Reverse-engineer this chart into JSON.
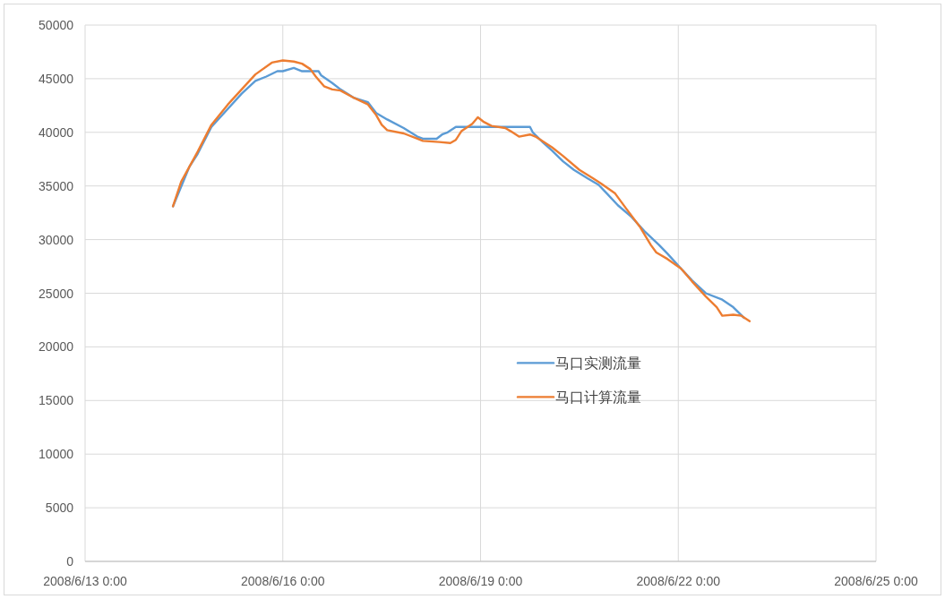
{
  "chart_data": {
    "type": "line",
    "xlim": [
      "2008-06-13T00:00",
      "2008-06-25T00:00"
    ],
    "xticks": [
      {
        "value": "2008-06-13T00:00",
        "label": "2008/6/13 0:00"
      },
      {
        "value": "2008-06-16T00:00",
        "label": "2008/6/16 0:00"
      },
      {
        "value": "2008-06-19T00:00",
        "label": "2008/6/19 0:00"
      },
      {
        "value": "2008-06-22T00:00",
        "label": "2008/6/22 0:00"
      },
      {
        "value": "2008-06-25T00:00",
        "label": "2008/6/25 0:00"
      }
    ],
    "ylim": [
      0,
      50000
    ],
    "yticks": [
      0,
      5000,
      10000,
      15000,
      20000,
      25000,
      30000,
      35000,
      40000,
      45000,
      50000
    ],
    "grid": true,
    "legend": "center right",
    "series": [
      {
        "name": "马口实测流量",
        "color": "#5b9bd5",
        "x": [
          "2008-06-14T08:00",
          "2008-06-14T14:00",
          "2008-06-14T17:00",
          "2008-06-14T22:00",
          "2008-06-15T04:00",
          "2008-06-15T09:00",
          "2008-06-15T14:00",
          "2008-06-15T18:00",
          "2008-06-15T22:00",
          "2008-06-16T00:00",
          "2008-06-16T04:00",
          "2008-06-16T07:00",
          "2008-06-16T10:00",
          "2008-06-16T13:00",
          "2008-06-16T14:00",
          "2008-06-16T18:00",
          "2008-06-16T21:00",
          "2008-06-17T02:00",
          "2008-06-17T07:00",
          "2008-06-17T10:00",
          "2008-06-17T14:00",
          "2008-06-17T20:00",
          "2008-06-18T01:00",
          "2008-06-18T03:00",
          "2008-06-18T08:00",
          "2008-06-18T10:00",
          "2008-06-18T12:00",
          "2008-06-18T15:00",
          "2008-06-18T23:00",
          "2008-06-19T10:00",
          "2008-06-19T18:00",
          "2008-06-19T19:00",
          "2008-06-19T23:00",
          "2008-06-20T02:00",
          "2008-06-20T06:00",
          "2008-06-20T10:00",
          "2008-06-20T15:00",
          "2008-06-20T19:00",
          "2008-06-20T22:00",
          "2008-06-21T02:00",
          "2008-06-21T07:00",
          "2008-06-21T12:00",
          "2008-06-21T17:00",
          "2008-06-21T20:00",
          "2008-06-22T01:00",
          "2008-06-22T05:00",
          "2008-06-22T10:00",
          "2008-06-22T16:00",
          "2008-06-22T20:00",
          "2008-06-23T00:00"
        ],
        "values": [
          33100,
          36800,
          38000,
          40500,
          42200,
          43600,
          44800,
          45200,
          45700,
          45700,
          46000,
          45700,
          45700,
          45700,
          45300,
          44600,
          44000,
          43200,
          42800,
          41800,
          41200,
          40400,
          39600,
          39400,
          39400,
          39800,
          40000,
          40500,
          40500,
          40500,
          40500,
          40000,
          39000,
          38300,
          37300,
          36500,
          35700,
          35100,
          34300,
          33200,
          32100,
          30700,
          29500,
          28700,
          27300,
          26200,
          25000,
          24400,
          23700,
          22700
        ]
      },
      {
        "name": "马口计算流量",
        "color": "#ed7d31",
        "x": [
          "2008-06-14T08:00",
          "2008-06-14T11:00",
          "2008-06-14T17:00",
          "2008-06-14T22:00",
          "2008-06-15T04:00",
          "2008-06-15T09:00",
          "2008-06-15T14:00",
          "2008-06-15T20:00",
          "2008-06-16T00:00",
          "2008-06-16T04:00",
          "2008-06-16T07:00",
          "2008-06-16T10:00",
          "2008-06-16T12:00",
          "2008-06-16T15:00",
          "2008-06-16T18:00",
          "2008-06-16T21:00",
          "2008-06-17T02:00",
          "2008-06-17T07:00",
          "2008-06-17T10:00",
          "2008-06-17T12:00",
          "2008-06-17T14:00",
          "2008-06-17T20:00",
          "2008-06-18T01:00",
          "2008-06-18T03:00",
          "2008-06-18T09:00",
          "2008-06-18T13:00",
          "2008-06-18T15:00",
          "2008-06-18T17:00",
          "2008-06-18T21:00",
          "2008-06-18T23:00",
          "2008-06-19T01:00",
          "2008-06-19T04:00",
          "2008-06-19T09:00",
          "2008-06-19T11:00",
          "2008-06-19T14:00",
          "2008-06-19T18:00",
          "2008-06-19T20:00",
          "2008-06-20T02:00",
          "2008-06-20T06:00",
          "2008-06-20T12:00",
          "2008-06-20T17:00",
          "2008-06-20T20:00",
          "2008-06-21T01:00",
          "2008-06-21T05:00",
          "2008-06-21T10:00",
          "2008-06-21T14:00",
          "2008-06-21T16:00",
          "2008-06-21T20:00",
          "2008-06-22T01:00",
          "2008-06-22T05:00",
          "2008-06-22T10:00",
          "2008-06-22T14:00",
          "2008-06-22T16:00",
          "2008-06-22T20:00",
          "2008-06-22T23:00",
          "2008-06-23T02:00"
        ],
        "values": [
          33100,
          35400,
          38200,
          40700,
          42600,
          44000,
          45400,
          46500,
          46700,
          46600,
          46400,
          45900,
          45200,
          44300,
          44000,
          43900,
          43200,
          42600,
          41600,
          40700,
          40200,
          39900,
          39400,
          39200,
          39100,
          39000,
          39300,
          40100,
          40800,
          41400,
          41000,
          40600,
          40400,
          40100,
          39600,
          39800,
          39600,
          38600,
          37800,
          36500,
          35700,
          35200,
          34300,
          32900,
          31200,
          29500,
          28800,
          28200,
          27300,
          26100,
          24700,
          23700,
          22900,
          23000,
          22900,
          22400
        ]
      }
    ]
  }
}
